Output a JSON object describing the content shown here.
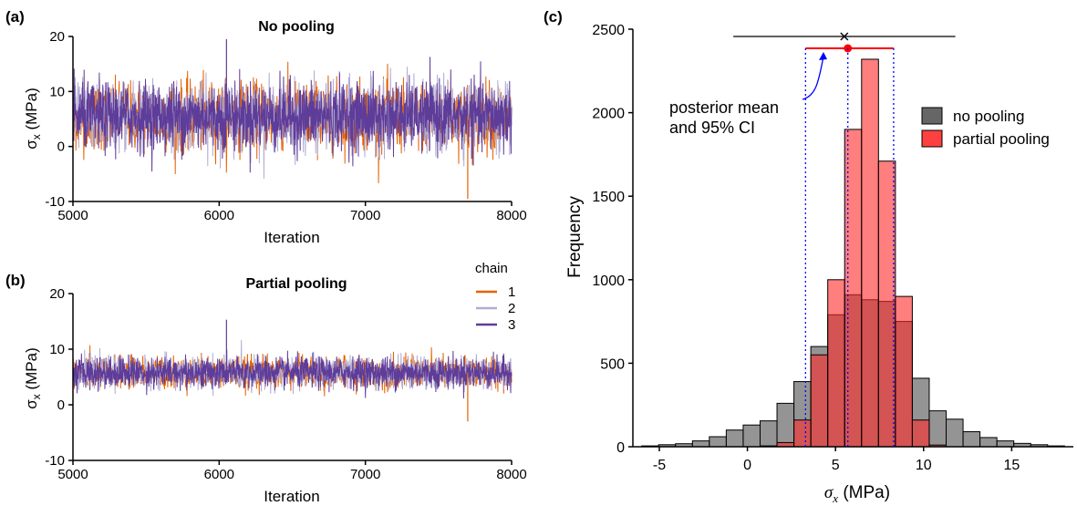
{
  "panel_labels": [
    "(a)",
    "(b)",
    "(c)"
  ],
  "chart_data": [
    {
      "type": "line",
      "panel": "(a)",
      "title": "No pooling",
      "xlabel": "Iteration",
      "ylabel": "σx (MPa)",
      "xlim": [
        5000,
        8000
      ],
      "ylim": [
        -10,
        20
      ],
      "xticks": [
        "5000",
        "6000",
        "7000",
        "8000"
      ],
      "yticks": [
        "-10",
        "0",
        "10",
        "20"
      ],
      "trace_summary": {
        "center": 5.5,
        "typical_half_range": 5.5,
        "max": 19.5,
        "min": -9.5,
        "iterations": 3000
      },
      "series": [
        {
          "name": "1",
          "color": "#e66101"
        },
        {
          "name": "2",
          "color": "#b2abd2"
        },
        {
          "name": "3",
          "color": "#5e3c99"
        }
      ]
    },
    {
      "type": "line",
      "panel": "(b)",
      "title": "Partial pooling",
      "xlabel": "Iteration",
      "ylabel": "σx (MPa)",
      "xlim": [
        5000,
        8000
      ],
      "ylim": [
        -10,
        20
      ],
      "xticks": [
        "5000",
        "6000",
        "7000",
        "8000"
      ],
      "yticks": [
        "-10",
        "0",
        "10",
        "20"
      ],
      "trace_summary": {
        "center": 5.8,
        "typical_half_range": 2.5,
        "max": 15.3,
        "min": -3.0,
        "iterations": 3000
      },
      "legend": {
        "title": "chain",
        "placement": "top-right"
      },
      "series": [
        {
          "name": "1",
          "color": "#e66101"
        },
        {
          "name": "2",
          "color": "#b2abd2"
        },
        {
          "name": "3",
          "color": "#5e3c99"
        }
      ]
    },
    {
      "type": "bar",
      "panel": "(c)",
      "xlabel": "σx (MPa)",
      "ylabel": "Frequency",
      "xlim": [
        -6.5,
        18.5
      ],
      "ylim": [
        0,
        2500
      ],
      "xticks": [
        "-5",
        "0",
        "5",
        "10",
        "15"
      ],
      "yticks": [
        "0",
        "500",
        "1000",
        "1500",
        "2000",
        "2500"
      ],
      "bin_width": 0.96,
      "bin_starts": [
        -6.0,
        -5.04,
        -4.08,
        -3.12,
        -2.16,
        -1.2,
        -0.24,
        0.72,
        1.68,
        2.64,
        3.6,
        4.56,
        5.52,
        6.48,
        7.44,
        8.4,
        9.36,
        10.32,
        11.28,
        12.24,
        13.2,
        14.16,
        15.12,
        16.08,
        17.04
      ],
      "series": [
        {
          "name": "no pooling",
          "color": "#666666",
          "values": [
            5,
            12,
            18,
            35,
            60,
            100,
            130,
            155,
            260,
            390,
            600,
            790,
            910,
            880,
            870,
            750,
            410,
            215,
            165,
            90,
            55,
            35,
            20,
            12,
            5
          ]
        },
        {
          "name": "partial pooling",
          "color": "#ff4040",
          "values": [
            0,
            0,
            0,
            0,
            0,
            0,
            0,
            5,
            25,
            160,
            550,
            1000,
            1900,
            2320,
            1710,
            900,
            160,
            10,
            0,
            0,
            0,
            0,
            0,
            0,
            0
          ]
        }
      ],
      "intervals": [
        {
          "series": "no pooling",
          "mean": 5.5,
          "ci": [
            -0.8,
            11.8
          ]
        },
        {
          "series": "partial pooling",
          "mean": 5.7,
          "ci": [
            3.3,
            8.3
          ]
        }
      ],
      "annotation": "posterior mean\nand 95% CI",
      "annotation_color": "#0000ff"
    }
  ]
}
